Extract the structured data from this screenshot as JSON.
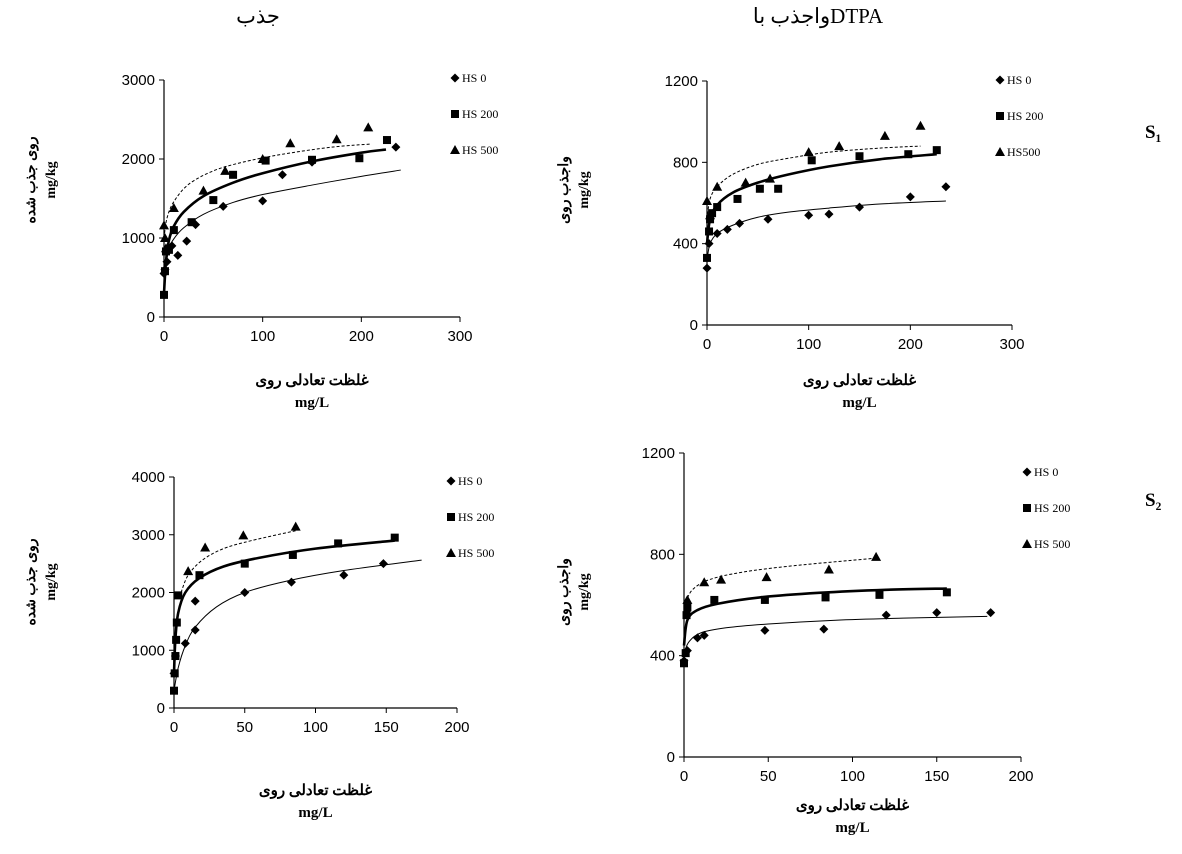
{
  "figure": {
    "col_titles": [
      "جذب",
      "واجذب باDTPA"
    ],
    "row_labels": [
      "S₁",
      "S₂"
    ]
  },
  "chart_data": [
    {
      "id": "s1-sorption",
      "type": "scatter",
      "xlabel": [
        "غلظت تعادلی روی",
        "mg/L"
      ],
      "ylabel": [
        "روی جذب شده",
        "mg/kg"
      ],
      "xlim": [
        0,
        300
      ],
      "ylim": [
        0,
        3000
      ],
      "xticks": [
        0,
        100,
        200,
        300
      ],
      "yticks": [
        0,
        1000,
        2000,
        3000
      ],
      "legend_position": "top-right",
      "series": [
        {
          "name": "HS 0",
          "marker": "diamond",
          "line": "thin",
          "points": [
            [
              0,
              550
            ],
            [
              1,
              600
            ],
            [
              3,
              700
            ],
            [
              8,
              900
            ],
            [
              14,
              780
            ],
            [
              23,
              960
            ],
            [
              32,
              1170
            ],
            [
              60,
              1400
            ],
            [
              100,
              1470
            ],
            [
              120,
              1800
            ],
            [
              150,
              1960
            ],
            [
              235,
              2150
            ]
          ],
          "curve": [
            [
              1,
              600
            ],
            [
              5,
              860
            ],
            [
              10,
              990
            ],
            [
              20,
              1130
            ],
            [
              40,
              1300
            ],
            [
              70,
              1450
            ],
            [
              100,
              1550
            ],
            [
              150,
              1670
            ],
            [
              200,
              1780
            ],
            [
              240,
              1860
            ]
          ]
        },
        {
          "name": "HS 200",
          "marker": "square",
          "line": "thick",
          "points": [
            [
              0,
              280
            ],
            [
              1,
              580
            ],
            [
              2,
              830
            ],
            [
              5,
              850
            ],
            [
              10,
              1100
            ],
            [
              28,
              1200
            ],
            [
              50,
              1480
            ],
            [
              70,
              1800
            ],
            [
              103,
              1980
            ],
            [
              150,
              1990
            ],
            [
              198,
              2010
            ],
            [
              226,
              2240
            ]
          ],
          "curve": [
            [
              0,
              300
            ],
            [
              2,
              700
            ],
            [
              5,
              970
            ],
            [
              10,
              1150
            ],
            [
              20,
              1330
            ],
            [
              40,
              1530
            ],
            [
              70,
              1700
            ],
            [
              100,
              1820
            ],
            [
              150,
              1970
            ],
            [
              200,
              2080
            ],
            [
              225,
              2120
            ]
          ]
        },
        {
          "name": "HS 500",
          "marker": "triangle",
          "line": "dotted",
          "points": [
            [
              0,
              1160
            ],
            [
              1,
              1000
            ],
            [
              2,
              870
            ],
            [
              10,
              1380
            ],
            [
              40,
              1600
            ],
            [
              62,
              1850
            ],
            [
              100,
              2000
            ],
            [
              128,
              2200
            ],
            [
              175,
              2250
            ],
            [
              207,
              2400
            ]
          ],
          "curve": [
            [
              0,
              1000
            ],
            [
              3,
              1250
            ],
            [
              10,
              1460
            ],
            [
              25,
              1680
            ],
            [
              50,
              1850
            ],
            [
              80,
              1960
            ],
            [
              120,
              2060
            ],
            [
              170,
              2150
            ],
            [
              210,
              2190
            ]
          ]
        }
      ]
    },
    {
      "id": "s1-desorption",
      "type": "scatter",
      "xlabel": [
        "غلظت تعادلی روی",
        "mg/L"
      ],
      "ylabel": [
        "واجذب روی",
        "mg/kg"
      ],
      "xlim": [
        0,
        300
      ],
      "ylim": [
        0,
        1200
      ],
      "xticks": [
        0,
        100,
        200,
        300
      ],
      "yticks": [
        0,
        400,
        800,
        1200
      ],
      "legend_position": "top-right",
      "series": [
        {
          "name": "HS 0",
          "marker": "diamond",
          "line": "thin",
          "points": [
            [
              0,
              280
            ],
            [
              2,
              400
            ],
            [
              10,
              450
            ],
            [
              20,
              470
            ],
            [
              32,
              500
            ],
            [
              60,
              520
            ],
            [
              100,
              540
            ],
            [
              120,
              545
            ],
            [
              150,
              580
            ],
            [
              200,
              630
            ],
            [
              235,
              680
            ]
          ],
          "curve": [
            [
              0,
              320
            ],
            [
              3,
              400
            ],
            [
              10,
              450
            ],
            [
              25,
              490
            ],
            [
              50,
              530
            ],
            [
              80,
              555
            ],
            [
              120,
              575
            ],
            [
              170,
              595
            ],
            [
              235,
              610
            ]
          ]
        },
        {
          "name": "HS 200",
          "marker": "square",
          "line": "thick",
          "points": [
            [
              0,
              330
            ],
            [
              2,
              460
            ],
            [
              3,
              520
            ],
            [
              5,
              550
            ],
            [
              10,
              580
            ],
            [
              30,
              620
            ],
            [
              52,
              670
            ],
            [
              70,
              670
            ],
            [
              103,
              810
            ],
            [
              150,
              830
            ],
            [
              198,
              840
            ],
            [
              226,
              860
            ]
          ],
          "curve": [
            [
              0,
              400
            ],
            [
              3,
              520
            ],
            [
              10,
              590
            ],
            [
              25,
              650
            ],
            [
              50,
              700
            ],
            [
              80,
              740
            ],
            [
              120,
              780
            ],
            [
              170,
              815
            ],
            [
              226,
              840
            ]
          ]
        },
        {
          "name": "HS500",
          "marker": "triangle",
          "line": "dotted",
          "points": [
            [
              0,
              610
            ],
            [
              3,
              540
            ],
            [
              10,
              680
            ],
            [
              38,
              700
            ],
            [
              62,
              720
            ],
            [
              100,
              850
            ],
            [
              130,
              880
            ],
            [
              175,
              930
            ],
            [
              210,
              980
            ]
          ],
          "curve": [
            [
              0,
              520
            ],
            [
              3,
              620
            ],
            [
              10,
              680
            ],
            [
              25,
              740
            ],
            [
              50,
              790
            ],
            [
              80,
              820
            ],
            [
              120,
              850
            ],
            [
              170,
              870
            ],
            [
              210,
              880
            ]
          ]
        }
      ]
    },
    {
      "id": "s2-sorption",
      "type": "scatter",
      "xlabel": [
        "غلظت تعادلی روی",
        "mg/L"
      ],
      "ylabel": [
        "روی جذب شده",
        "mg/kg"
      ],
      "xlim": [
        0,
        200
      ],
      "ylim": [
        0,
        4000
      ],
      "xticks": [
        0,
        50,
        100,
        150,
        200
      ],
      "yticks": [
        0,
        1000,
        2000,
        3000,
        4000
      ],
      "legend_position": "top-right",
      "series": [
        {
          "name": "HS 0",
          "marker": "diamond",
          "line": "thin",
          "points": [
            [
              0,
              600
            ],
            [
              1,
              900
            ],
            [
              8,
              1120
            ],
            [
              15,
              1350
            ],
            [
              15,
              1850
            ],
            [
              50,
              2000
            ],
            [
              83,
              2180
            ],
            [
              120,
              2300
            ],
            [
              148,
              2500
            ]
          ],
          "curve": [
            [
              0,
              300
            ],
            [
              3,
              700
            ],
            [
              8,
              1080
            ],
            [
              15,
              1400
            ],
            [
              30,
              1750
            ],
            [
              50,
              2000
            ],
            [
              80,
              2200
            ],
            [
              120,
              2380
            ],
            [
              175,
              2560
            ]
          ]
        },
        {
          "name": "HS 200",
          "marker": "square",
          "line": "thick",
          "points": [
            [
              0,
              300
            ],
            [
              0.5,
              600
            ],
            [
              1,
              900
            ],
            [
              1.5,
              1180
            ],
            [
              2,
              1480
            ],
            [
              3,
              1950
            ],
            [
              18,
              2300
            ],
            [
              50,
              2500
            ],
            [
              84,
              2650
            ],
            [
              116,
              2850
            ],
            [
              156,
              2950
            ]
          ],
          "curve": [
            [
              0,
              600
            ],
            [
              1,
              1200
            ],
            [
              3,
              1650
            ],
            [
              8,
              2000
            ],
            [
              18,
              2250
            ],
            [
              35,
              2450
            ],
            [
              60,
              2600
            ],
            [
              100,
              2760
            ],
            [
              156,
              2900
            ]
          ]
        },
        {
          "name": "HS 500",
          "marker": "triangle",
          "line": "dotted",
          "points": [
            [
              10,
              2370
            ],
            [
              22,
              2780
            ],
            [
              49,
              2990
            ],
            [
              86,
              3140
            ]
          ],
          "curve": [
            [
              5,
              2000
            ],
            [
              10,
              2300
            ],
            [
              20,
              2560
            ],
            [
              35,
              2760
            ],
            [
              55,
              2900
            ],
            [
              86,
              3070
            ]
          ]
        }
      ]
    },
    {
      "id": "s2-desorption",
      "type": "scatter",
      "xlabel": [
        "غلظت تعادلی روی",
        "mg/L"
      ],
      "ylabel": [
        "واجذب روی",
        "mg/kg"
      ],
      "xlim": [
        0,
        200
      ],
      "ylim": [
        0,
        1200
      ],
      "xticks": [
        0,
        50,
        100,
        150,
        200
      ],
      "yticks": [
        0,
        400,
        800,
        1200
      ],
      "legend_position": "top-right",
      "series": [
        {
          "name": "HS 0",
          "marker": "diamond",
          "line": "thin",
          "points": [
            [
              0,
              380
            ],
            [
              2,
              420
            ],
            [
              8,
              470
            ],
            [
              12,
              480
            ],
            [
              48,
              500
            ],
            [
              83,
              505
            ],
            [
              120,
              560
            ],
            [
              150,
              570
            ],
            [
              182,
              570
            ]
          ],
          "curve": [
            [
              0,
              410
            ],
            [
              3,
              455
            ],
            [
              10,
              490
            ],
            [
              25,
              510
            ],
            [
              50,
              525
            ],
            [
              90,
              540
            ],
            [
              130,
              548
            ],
            [
              180,
              555
            ]
          ]
        },
        {
          "name": "HS 200",
          "marker": "square",
          "line": "thick",
          "points": [
            [
              0,
              370
            ],
            [
              1,
              410
            ],
            [
              1.5,
              560
            ],
            [
              2,
              590
            ],
            [
              18,
              620
            ],
            [
              48,
              620
            ],
            [
              84,
              630
            ],
            [
              116,
              640
            ],
            [
              156,
              650
            ]
          ],
          "curve": [
            [
              0,
              440
            ],
            [
              2,
              540
            ],
            [
              8,
              580
            ],
            [
              20,
              605
            ],
            [
              45,
              630
            ],
            [
              80,
              648
            ],
            [
              120,
              660
            ],
            [
              156,
              665
            ]
          ]
        },
        {
          "name": "HS 500",
          "marker": "triangle",
          "line": "dotted",
          "points": [
            [
              2,
              620
            ],
            [
              12,
              690
            ],
            [
              22,
              700
            ],
            [
              49,
              710
            ],
            [
              86,
              740
            ],
            [
              114,
              790
            ]
          ],
          "curve": [
            [
              1,
              610
            ],
            [
              5,
              660
            ],
            [
              15,
              700
            ],
            [
              35,
              730
            ],
            [
              65,
              755
            ],
            [
              114,
              785
            ]
          ]
        }
      ]
    }
  ]
}
